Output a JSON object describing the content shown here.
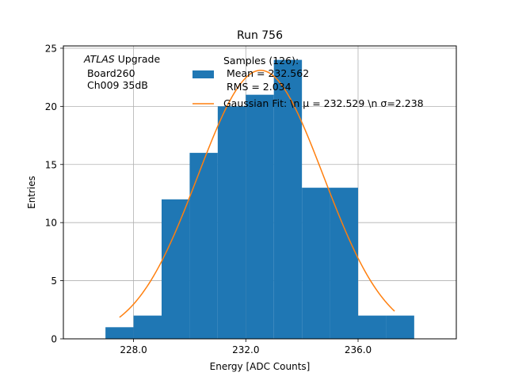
{
  "chart_data": {
    "type": "bar",
    "title": "Run 756",
    "xlabel": "Energy [ADC Counts]",
    "ylabel": "Entries",
    "xlim": [
      225.5,
      239.5
    ],
    "ylim": [
      0,
      25.2
    ],
    "x_ticks": [
      228.0,
      232.0,
      236.0
    ],
    "x_tick_labels": [
      "228.0",
      "232.0",
      "236.0"
    ],
    "y_ticks": [
      0,
      5,
      10,
      15,
      20,
      25
    ],
    "y_tick_labels": [
      "0",
      "5",
      "10",
      "15",
      "20",
      "25"
    ],
    "grid": true,
    "histogram": {
      "bin_edges": [
        227,
        228,
        229,
        230,
        231,
        232,
        233,
        234,
        235,
        236,
        237,
        238
      ],
      "counts": [
        1,
        2,
        12,
        16,
        20,
        21,
        24,
        13,
        13,
        2,
        2
      ],
      "color": "#1f77b4"
    },
    "fit": {
      "mean": 232.529,
      "sigma": 2.238,
      "amplitude": 23.1,
      "x_range": [
        227.5,
        237.3
      ],
      "color": "#ff7f0e"
    },
    "atlas_label": {
      "italic": "ATLAS",
      "rest": " Upgrade",
      "line2": " Board260",
      "line3": " Ch009 35dB"
    },
    "legend": {
      "position": "top-right",
      "entries": [
        {
          "kind": "patch",
          "color": "#1f77b4",
          "lines": [
            "Samples (126):",
            " Mean = 232.562",
            " RMS = 2.034"
          ]
        },
        {
          "kind": "line",
          "color": "#ff7f0e",
          "lines": [
            "Gaussian Fit: \\n μ = 232.529 \\n σ=2.238"
          ]
        }
      ]
    }
  }
}
